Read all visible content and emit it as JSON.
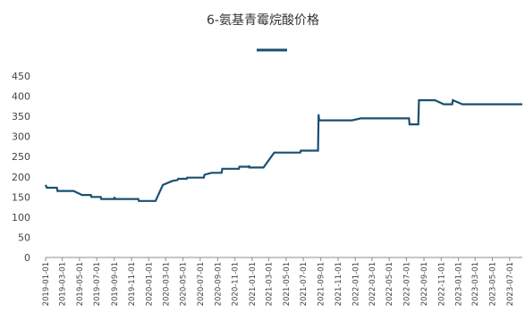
{
  "chart_data": {
    "type": "line",
    "title": "6-氨基青霉烷酸价格",
    "xlabel": "",
    "ylabel": "",
    "ylim": [
      0,
      450
    ],
    "yticks": [
      0,
      50,
      100,
      150,
      200,
      250,
      300,
      350,
      400,
      450
    ],
    "x_tick_labels": [
      "2019-01-01",
      "2019-03-01",
      "2019-05-01",
      "2019-07-01",
      "2019-09-01",
      "2019-11-01",
      "2020-01-01",
      "2020-03-01",
      "2020-05-01",
      "2020-07-01",
      "2020-09-01",
      "2020-11-01",
      "2021-01-01",
      "2021-03-01",
      "2021-05-01",
      "2021-07-01",
      "2021-09-01",
      "2021-11-01",
      "2022-01-01",
      "2022-03-01",
      "2022-05-01",
      "2022-07-01",
      "2022-09-01",
      "2022-11-01",
      "2023-01-01",
      "2023-03-01",
      "2023-05-01",
      "2023-07-01"
    ],
    "grid": false,
    "legend_position": "top",
    "series": [
      {
        "name": "",
        "color": "#1b4f72",
        "points": [
          [
            "2019-01-01",
            180
          ],
          [
            "2019-01-05",
            173
          ],
          [
            "2019-02-10",
            173
          ],
          [
            "2019-02-12",
            165
          ],
          [
            "2019-04-10",
            165
          ],
          [
            "2019-05-10",
            155
          ],
          [
            "2019-06-10",
            155
          ],
          [
            "2019-06-12",
            150
          ],
          [
            "2019-07-15",
            150
          ],
          [
            "2019-07-17",
            145
          ],
          [
            "2019-09-01",
            145
          ],
          [
            "2019-09-02",
            150
          ],
          [
            "2019-09-03",
            145
          ],
          [
            "2019-11-25",
            145
          ],
          [
            "2019-11-27",
            140
          ],
          [
            "2020-01-25",
            140
          ],
          [
            "2020-02-20",
            180
          ],
          [
            "2020-03-25",
            190
          ],
          [
            "2020-04-12",
            192
          ],
          [
            "2020-04-14",
            195
          ],
          [
            "2020-05-14",
            195
          ],
          [
            "2020-05-16",
            198
          ],
          [
            "2020-07-14",
            198
          ],
          [
            "2020-07-16",
            205
          ],
          [
            "2020-08-10",
            210
          ],
          [
            "2020-09-15",
            210
          ],
          [
            "2020-09-17",
            220
          ],
          [
            "2020-11-15",
            220
          ],
          [
            "2020-11-17",
            225
          ],
          [
            "2020-12-20",
            225
          ],
          [
            "2020-12-21",
            228
          ],
          [
            "2020-12-22",
            223
          ],
          [
            "2021-02-10",
            223
          ],
          [
            "2021-03-20",
            260
          ],
          [
            "2021-06-20",
            260
          ],
          [
            "2021-06-22",
            265
          ],
          [
            "2021-08-22",
            265
          ],
          [
            "2021-08-24",
            355
          ],
          [
            "2021-08-26",
            340
          ],
          [
            "2021-12-20",
            340
          ],
          [
            "2022-01-20",
            345
          ],
          [
            "2022-07-10",
            345
          ],
          [
            "2022-07-12",
            330
          ],
          [
            "2022-08-12",
            330
          ],
          [
            "2022-08-14",
            390
          ],
          [
            "2022-10-10",
            390
          ],
          [
            "2022-11-10",
            380
          ],
          [
            "2022-12-10",
            380
          ],
          [
            "2022-12-12",
            390
          ],
          [
            "2023-01-15",
            380
          ],
          [
            "2023-08-15",
            380
          ]
        ]
      }
    ]
  }
}
